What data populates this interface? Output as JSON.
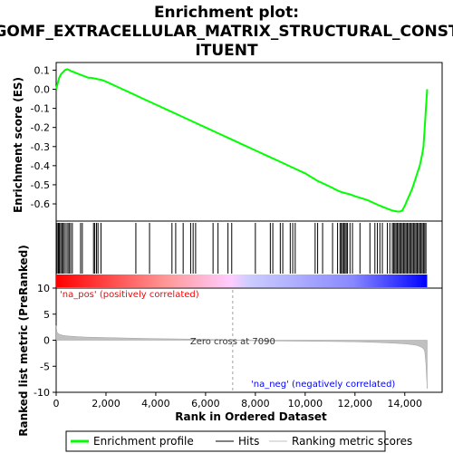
{
  "chart_data": {
    "type": "line",
    "title_lines": [
      "Enrichment plot:",
      "GOMF_EXTRACELLULAR_MATRIX_STRUCTURAL_CONST",
      "ITUENT"
    ],
    "top_panel": {
      "ylabel": "Enrichment score (ES)",
      "ylim": [
        -0.69,
        0.14
      ],
      "yticks": [
        "0.1",
        "0.0",
        "-0.1",
        "-0.2",
        "-0.3",
        "-0.4",
        "-0.5",
        "-0.6"
      ],
      "ytick_values": [
        0.1,
        0.0,
        -0.1,
        -0.2,
        -0.3,
        -0.4,
        -0.5,
        -0.6
      ],
      "series": [
        {
          "name": "Enrichment profile",
          "color": "#00ff00",
          "x": [
            0,
            60,
            120,
            200,
            280,
            350,
            450,
            520,
            600,
            700,
            800,
            900,
            1000,
            1100,
            1200,
            1300,
            1400,
            1500,
            1600,
            1700,
            1800,
            2000,
            2500,
            3000,
            3500,
            4000,
            4500,
            5000,
            5500,
            6000,
            6500,
            7000,
            7500,
            8000,
            8500,
            9000,
            9500,
            10000,
            10500,
            11000,
            11300,
            11500,
            11800,
            12000,
            12500,
            13000,
            13300,
            13500,
            13700,
            13800,
            13900,
            14000,
            14100,
            14200,
            14300,
            14400,
            14500,
            14600,
            14700,
            14750,
            14800,
            14850,
            14900
          ],
          "y": [
            0.0,
            0.03,
            0.06,
            0.08,
            0.09,
            0.1,
            0.105,
            0.1,
            0.095,
            0.09,
            0.085,
            0.08,
            0.075,
            0.07,
            0.065,
            0.06,
            0.06,
            0.058,
            0.055,
            0.052,
            0.05,
            0.04,
            0.01,
            -0.02,
            -0.05,
            -0.08,
            -0.11,
            -0.14,
            -0.17,
            -0.2,
            -0.23,
            -0.26,
            -0.29,
            -0.32,
            -0.35,
            -0.38,
            -0.41,
            -0.44,
            -0.48,
            -0.51,
            -0.53,
            -0.54,
            -0.55,
            -0.56,
            -0.58,
            -0.61,
            -0.625,
            -0.635,
            -0.64,
            -0.64,
            -0.635,
            -0.61,
            -0.58,
            -0.55,
            -0.52,
            -0.48,
            -0.44,
            -0.4,
            -0.34,
            -0.3,
            -0.2,
            -0.1,
            0.0
          ]
        }
      ]
    },
    "hits_panel": {
      "hit_positions": [
        40,
        90,
        130,
        180,
        230,
        280,
        330,
        400,
        470,
        520,
        580,
        650,
        980,
        1050,
        1500,
        1550,
        1620,
        1680,
        1800,
        3200,
        3750,
        4650,
        4800,
        5100,
        5400,
        5500,
        5600,
        6300,
        6500,
        6900,
        7050,
        8000,
        8600,
        8700,
        9000,
        9100,
        9400,
        9500,
        9600,
        10400,
        10500,
        10700,
        11100,
        11300,
        11400,
        11450,
        11500,
        11550,
        11600,
        11650,
        11700,
        11800,
        11900,
        12200,
        12600,
        12800,
        12900,
        13000,
        13100,
        13300,
        13400,
        13500,
        13550,
        13600,
        13650,
        13700,
        13750,
        13800,
        13850,
        13900,
        13950,
        14000,
        14050,
        14100,
        14150,
        14200,
        14250,
        14300,
        14350,
        14400,
        14450,
        14500,
        14550,
        14600,
        14650,
        14700,
        14750,
        14800,
        14850
      ],
      "gradient_colors": [
        "#ff0000",
        "#ff9999",
        "#ffccff",
        "#ccccff",
        "#6666ff",
        "#0000ff"
      ]
    },
    "bottom_panel": {
      "ylabel": "Ranked list metric (PreRanked)",
      "ylim": [
        -10,
        10
      ],
      "yticks": [
        "10",
        "5",
        "0",
        "-5",
        "-10"
      ],
      "ytick_values": [
        10,
        5,
        0,
        -5,
        -10
      ],
      "metric_x": [
        0,
        30,
        80,
        150,
        300,
        500,
        800,
        1200,
        2000,
        3000,
        4000,
        5000,
        6000,
        7000,
        7090,
        8000,
        9000,
        10000,
        11000,
        12000,
        13000,
        13500,
        14000,
        14300,
        14500,
        14650,
        14750,
        14800,
        14850,
        14900
      ],
      "metric_y": [
        2.8,
        1.6,
        1.3,
        1.1,
        0.9,
        0.8,
        0.7,
        0.6,
        0.5,
        0.4,
        0.3,
        0.25,
        0.15,
        0.05,
        0.0,
        -0.1,
        -0.15,
        -0.2,
        -0.25,
        -0.3,
        -0.45,
        -0.55,
        -0.7,
        -0.85,
        -1.0,
        -1.3,
        -1.6,
        -2.2,
        -4.5,
        -9.3
      ],
      "pos_label": "'na_pos' (positively correlated)",
      "neg_label": "'na_neg' (negatively correlated)",
      "zero_cross_label": "Zero cross at 7090",
      "zero_cross": 7090
    },
    "xlabel": "Rank in Ordered Dataset",
    "xlim": [
      0,
      15500
    ],
    "xticks": [
      "0",
      "2,000",
      "4,000",
      "6,000",
      "8,000",
      "10,000",
      "12,000",
      "14,000"
    ],
    "xtick_values": [
      0,
      2000,
      4000,
      6000,
      8000,
      10000,
      12000,
      14000
    ],
    "legend": {
      "placement": "bottom",
      "entries": [
        {
          "label": "Enrichment profile",
          "color": "#00ff00"
        },
        {
          "label": "Hits",
          "color": "#000000"
        },
        {
          "label": "Ranking metric scores",
          "color": "#c0c0c0"
        }
      ]
    }
  }
}
